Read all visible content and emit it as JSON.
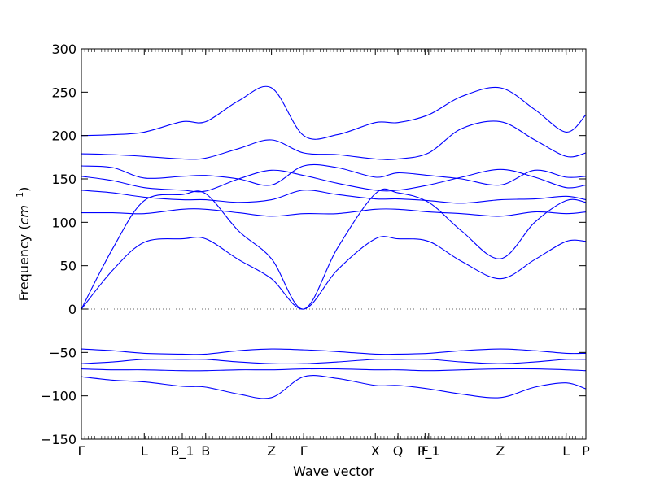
{
  "chart_data": {
    "type": "line",
    "xlabel": "Wave vector",
    "ylabel_prefix": "Frequency (",
    "ylabel_unit_base": "cm",
    "ylabel_unit_exp": "−1",
    "ylabel_suffix": ")",
    "ylim": [
      -150,
      300
    ],
    "xlim": [
      0,
      6.9
    ],
    "yticks": [
      -150,
      -100,
      -50,
      0,
      50,
      100,
      150,
      200,
      250,
      300
    ],
    "xticks": [
      {
        "x": 0.0,
        "label": "Γ"
      },
      {
        "x": 0.86,
        "label": "L"
      },
      {
        "x": 1.38,
        "label": "B_1"
      },
      {
        "x": 1.7,
        "label": "B"
      },
      {
        "x": 2.6,
        "label": "Z"
      },
      {
        "x": 3.04,
        "label": "Γ"
      },
      {
        "x": 4.02,
        "label": "X"
      },
      {
        "x": 4.33,
        "label": "Q"
      },
      {
        "x": 4.7,
        "label": "F"
      },
      {
        "x": 4.75,
        "label": "P_1"
      },
      {
        "x": 5.73,
        "label": "Z"
      },
      {
        "x": 6.63,
        "label": "L"
      },
      {
        "x": 6.9,
        "label": "P"
      }
    ],
    "zero_line": 0,
    "line_color": "#0000ff",
    "zero_line_color": "#666666",
    "series": [
      {
        "x": [
          0,
          0.43,
          0.86,
          1.38,
          1.7,
          2.15,
          2.6,
          3.04,
          3.5,
          4.02,
          4.33,
          4.75,
          5.2,
          5.73,
          6.2,
          6.63,
          6.9
        ],
        "values": [
          -78,
          -82,
          -84,
          -89,
          -90,
          -98,
          -102,
          -78,
          -80,
          -88,
          -88,
          -92,
          -98,
          -102,
          -90,
          -85,
          -92
        ]
      },
      {
        "x": [
          0,
          0.43,
          0.86,
          1.38,
          1.7,
          2.15,
          2.6,
          3.04,
          3.5,
          4.02,
          4.33,
          4.75,
          5.2,
          5.73,
          6.2,
          6.63,
          6.9
        ],
        "values": [
          -69,
          -70,
          -70,
          -71,
          -71,
          -70,
          -70,
          -69,
          -69,
          -70,
          -70,
          -71,
          -70,
          -69,
          -69,
          -70,
          -71
        ]
      },
      {
        "x": [
          0,
          0.43,
          0.86,
          1.38,
          1.7,
          2.15,
          2.6,
          3.04,
          3.5,
          4.02,
          4.33,
          4.75,
          5.2,
          5.73,
          6.2,
          6.63,
          6.9
        ],
        "values": [
          -63,
          -61,
          -58,
          -58,
          -58,
          -61,
          -63,
          -63,
          -61,
          -58,
          -58,
          -58,
          -61,
          -63,
          -61,
          -58,
          -58
        ]
      },
      {
        "x": [
          0,
          0.43,
          0.86,
          1.38,
          1.7,
          2.15,
          2.6,
          3.04,
          3.5,
          4.02,
          4.33,
          4.75,
          5.2,
          5.73,
          6.2,
          6.63,
          6.9
        ],
        "values": [
          -46,
          -48,
          -51,
          -52,
          -52,
          -48,
          -46,
          -47,
          -49,
          -52,
          -52,
          -51,
          -48,
          -46,
          -48,
          -51,
          -51
        ]
      },
      {
        "x": [
          0,
          0.43,
          0.86,
          1.38,
          1.7,
          2.15,
          2.6,
          3.04,
          3.5,
          4.02,
          4.33,
          4.75,
          5.2,
          5.73,
          6.2,
          6.63,
          6.9
        ],
        "values": [
          0,
          45,
          77,
          81,
          81,
          57,
          35,
          0,
          45,
          81,
          81,
          78,
          55,
          35,
          57,
          78,
          78
        ]
      },
      {
        "x": [
          0,
          0.43,
          0.86,
          1.38,
          1.7,
          2.15,
          2.6,
          3.04,
          3.5,
          4.02,
          4.33,
          4.75,
          5.2,
          5.73,
          6.2,
          6.63,
          6.9
        ],
        "values": [
          0,
          70,
          125,
          132,
          133,
          90,
          58,
          0,
          70,
          133,
          134,
          123,
          90,
          58,
          100,
          125,
          123
        ]
      },
      {
        "x": [
          0,
          0.43,
          0.86,
          1.38,
          1.7,
          2.15,
          2.6,
          3.04,
          3.5,
          4.02,
          4.33,
          4.75,
          5.2,
          5.73,
          6.2,
          6.63,
          6.9
        ],
        "values": [
          111,
          111,
          110,
          115,
          115,
          111,
          107,
          110,
          110,
          115,
          115,
          112,
          110,
          107,
          112,
          110,
          112
        ]
      },
      {
        "x": [
          0,
          0.43,
          0.86,
          1.38,
          1.7,
          2.15,
          2.6,
          3.04,
          3.5,
          4.02,
          4.33,
          4.75,
          5.2,
          5.73,
          6.2,
          6.63,
          6.9
        ],
        "values": [
          137,
          134,
          129,
          126,
          126,
          123,
          126,
          137,
          132,
          127,
          127,
          125,
          122,
          126,
          127,
          130,
          126
        ]
      },
      {
        "x": [
          0,
          0.43,
          0.86,
          1.38,
          1.7,
          2.15,
          2.6,
          3.04,
          3.5,
          4.02,
          4.33,
          4.75,
          5.2,
          5.73,
          6.2,
          6.63,
          6.9
        ],
        "values": [
          153,
          148,
          140,
          137,
          136,
          150,
          160,
          154,
          145,
          137,
          137,
          143,
          152,
          161,
          152,
          140,
          143
        ]
      },
      {
        "x": [
          0,
          0.43,
          0.86,
          1.38,
          1.7,
          2.15,
          2.6,
          3.04,
          3.5,
          4.02,
          4.33,
          4.75,
          5.2,
          5.73,
          6.2,
          6.63,
          6.9
        ],
        "values": [
          165,
          163,
          151,
          153,
          154,
          150,
          143,
          165,
          163,
          152,
          157,
          154,
          150,
          143,
          160,
          152,
          153
        ]
      },
      {
        "x": [
          0,
          0.43,
          0.86,
          1.38,
          1.7,
          2.15,
          2.6,
          3.04,
          3.5,
          4.02,
          4.33,
          4.75,
          5.2,
          5.73,
          6.2,
          6.63,
          6.9
        ],
        "values": [
          179,
          178,
          176,
          173,
          174,
          185,
          195,
          180,
          178,
          173,
          173,
          180,
          208,
          216,
          195,
          176,
          180
        ]
      },
      {
        "x": [
          0,
          0.43,
          0.86,
          1.38,
          1.7,
          2.15,
          2.6,
          3.04,
          3.5,
          4.02,
          4.33,
          4.75,
          5.2,
          5.73,
          6.2,
          6.63,
          6.9
        ],
        "values": [
          200,
          201,
          204,
          216,
          216,
          240,
          255,
          200,
          201,
          215,
          215,
          224,
          245,
          255,
          230,
          204,
          224
        ]
      }
    ]
  }
}
